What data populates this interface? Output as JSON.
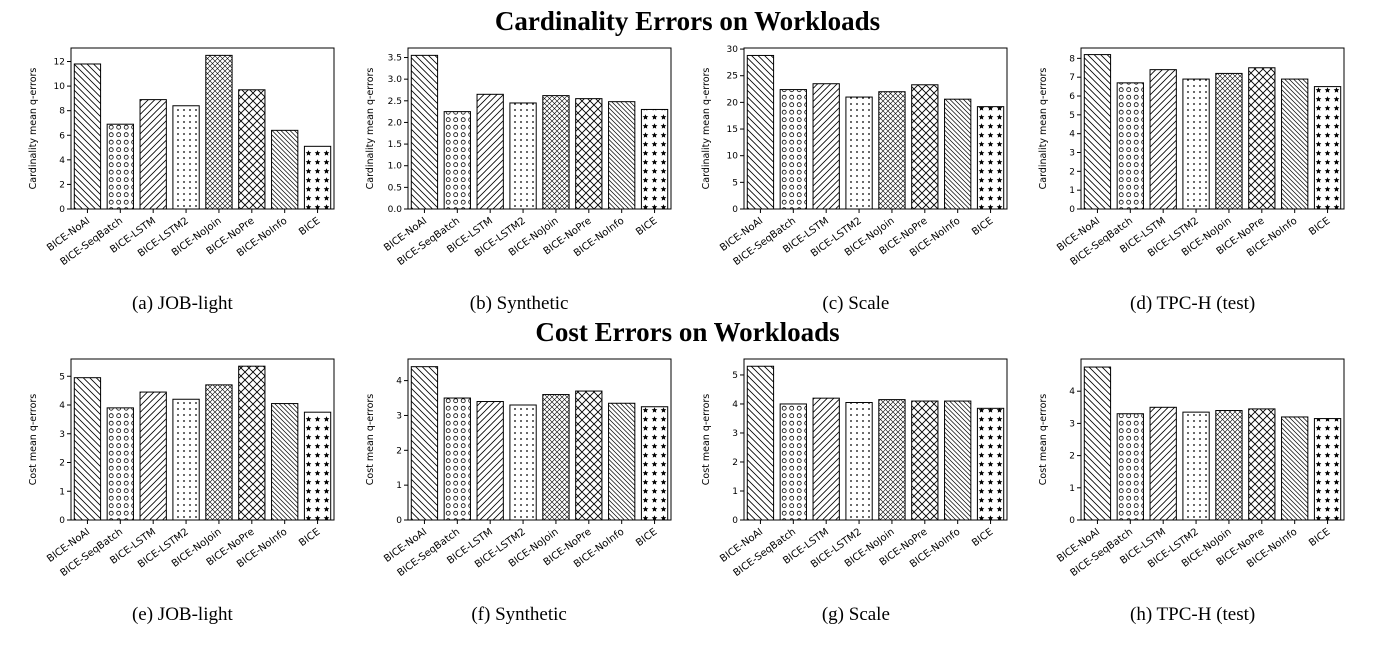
{
  "figure": {
    "section_titles": [
      "Cardinality Errors on Workloads",
      "Cost Errors on Workloads"
    ]
  },
  "hatches": [
    "diag-back",
    "circle",
    "diag-forward",
    "dot",
    "crosshatch",
    "x-crosshatch",
    "diag-back-dense",
    "star"
  ],
  "chart_data": [
    {
      "type": "bar",
      "caption": "(a) JOB-light",
      "group": "Cardinality Errors on Workloads",
      "ylabel": "Cardinality mean q-errors",
      "categories": [
        "BICE-NoAI",
        "BICE-SeqBatch",
        "BICE-LSTM",
        "BICE-LSTM2",
        "BICE-NoJoin",
        "BICE-NoPre",
        "BICE-NoInfo",
        "BICE"
      ],
      "values": [
        11.8,
        6.9,
        8.9,
        8.4,
        12.5,
        9.7,
        6.4,
        5.1
      ],
      "yticks": [
        0,
        2,
        4,
        6,
        8,
        10,
        12
      ],
      "ylim": [
        0,
        13.1
      ],
      "decimals": 0
    },
    {
      "type": "bar",
      "caption": "(b) Synthetic",
      "group": "Cardinality Errors on Workloads",
      "ylabel": "Cardinality mean q-errors",
      "categories": [
        "BICE-NoAI",
        "BICE-SeqBatch",
        "BICE-LSTM",
        "BICE-LSTM2",
        "BICE-NoJoin",
        "BICE-NoPre",
        "BICE-NoInfo",
        "BICE"
      ],
      "values": [
        3.55,
        2.25,
        2.65,
        2.45,
        2.62,
        2.55,
        2.48,
        2.3
      ],
      "yticks": [
        0,
        0.5,
        1,
        1.5,
        2,
        2.5,
        3,
        3.5
      ],
      "ylim": [
        0,
        3.72
      ],
      "decimals": 1
    },
    {
      "type": "bar",
      "caption": "(c) Scale",
      "group": "Cardinality Errors on Workloads",
      "ylabel": "Cardinality mean q-errors",
      "categories": [
        "BICE-NoAI",
        "BICE-SeqBatch",
        "BICE-LSTM",
        "BICE-LSTM2",
        "BICE-NoJoin",
        "BICE-NoPre",
        "BICE-NoInfo",
        "BICE"
      ],
      "values": [
        28.8,
        22.4,
        23.5,
        21.0,
        22.0,
        23.3,
        20.6,
        19.2
      ],
      "yticks": [
        0,
        5,
        10,
        15,
        20,
        25,
        30
      ],
      "ylim": [
        0,
        30.2
      ],
      "decimals": 0
    },
    {
      "type": "bar",
      "caption": "(d) TPC-H (test)",
      "group": "Cardinality Errors on Workloads",
      "ylabel": "Cardinality mean q-errors",
      "categories": [
        "BICE-NoAI",
        "BICE-SeqBatch",
        "BICE-LSTM",
        "BICE-LSTM2",
        "BICE-NoJoin",
        "BICE-NoPre",
        "BICE-NoInfo",
        "BICE"
      ],
      "values": [
        8.2,
        6.7,
        7.4,
        6.9,
        7.2,
        7.5,
        6.9,
        6.5
      ],
      "yticks": [
        0,
        1,
        2,
        3,
        4,
        5,
        6,
        7,
        8
      ],
      "ylim": [
        0,
        8.55
      ],
      "decimals": 0
    },
    {
      "type": "bar",
      "caption": "(e) JOB-light",
      "group": "Cost Errors on Workloads",
      "ylabel": "Cost mean q-errors",
      "categories": [
        "BICE-NoAI",
        "BICE-SeqBatch",
        "BICE-LSTM",
        "BICE-LSTM2",
        "BICE-NoJoin",
        "BICE-NoPre",
        "BICE-NoInfo",
        "BICE"
      ],
      "values": [
        4.95,
        3.9,
        4.45,
        4.2,
        4.7,
        5.35,
        4.05,
        3.75
      ],
      "yticks": [
        0,
        1,
        2,
        3,
        4,
        5
      ],
      "ylim": [
        0,
        5.6
      ],
      "decimals": 0
    },
    {
      "type": "bar",
      "caption": "(f) Synthetic",
      "group": "Cost Errors on Workloads",
      "ylabel": "Cost mean q-errors",
      "categories": [
        "BICE-NoAI",
        "BICE-SeqBatch",
        "BICE-LSTM",
        "BICE-LSTM2",
        "BICE-NoJoin",
        "BICE-NoPre",
        "BICE-NoInfo",
        "BICE"
      ],
      "values": [
        4.4,
        3.5,
        3.4,
        3.3,
        3.6,
        3.7,
        3.35,
        3.25
      ],
      "yticks": [
        0,
        1,
        2,
        3,
        4
      ],
      "ylim": [
        0,
        4.62
      ],
      "decimals": 0
    },
    {
      "type": "bar",
      "caption": "(g) Scale",
      "group": "Cost Errors on Workloads",
      "ylabel": "Cost mean q-errors",
      "categories": [
        "BICE-NoAI",
        "BICE-SeqBatch",
        "BICE-LSTM",
        "BICE-LSTM2",
        "BICE-NoJoin",
        "BICE-NoPre",
        "BICE-NoInfo",
        "BICE"
      ],
      "values": [
        5.3,
        4.0,
        4.2,
        4.05,
        4.15,
        4.1,
        4.1,
        3.85
      ],
      "yticks": [
        0,
        1,
        2,
        3,
        4,
        5
      ],
      "ylim": [
        0,
        5.55
      ],
      "decimals": 0
    },
    {
      "type": "bar",
      "caption": "(h) TPC-H (test)",
      "group": "Cost Errors on Workloads",
      "ylabel": "Cost mean q-errors",
      "categories": [
        "BICE-NoAI",
        "BICE-SeqBatch",
        "BICE-LSTM",
        "BICE-LSTM2",
        "BICE-NoJoin",
        "BICE-NoPre",
        "BICE-NoInfo",
        "BICE"
      ],
      "values": [
        4.75,
        3.3,
        3.5,
        3.35,
        3.4,
        3.45,
        3.2,
        3.15
      ],
      "yticks": [
        0,
        1,
        2,
        3,
        4
      ],
      "ylim": [
        0,
        5.0
      ],
      "decimals": 0
    }
  ]
}
